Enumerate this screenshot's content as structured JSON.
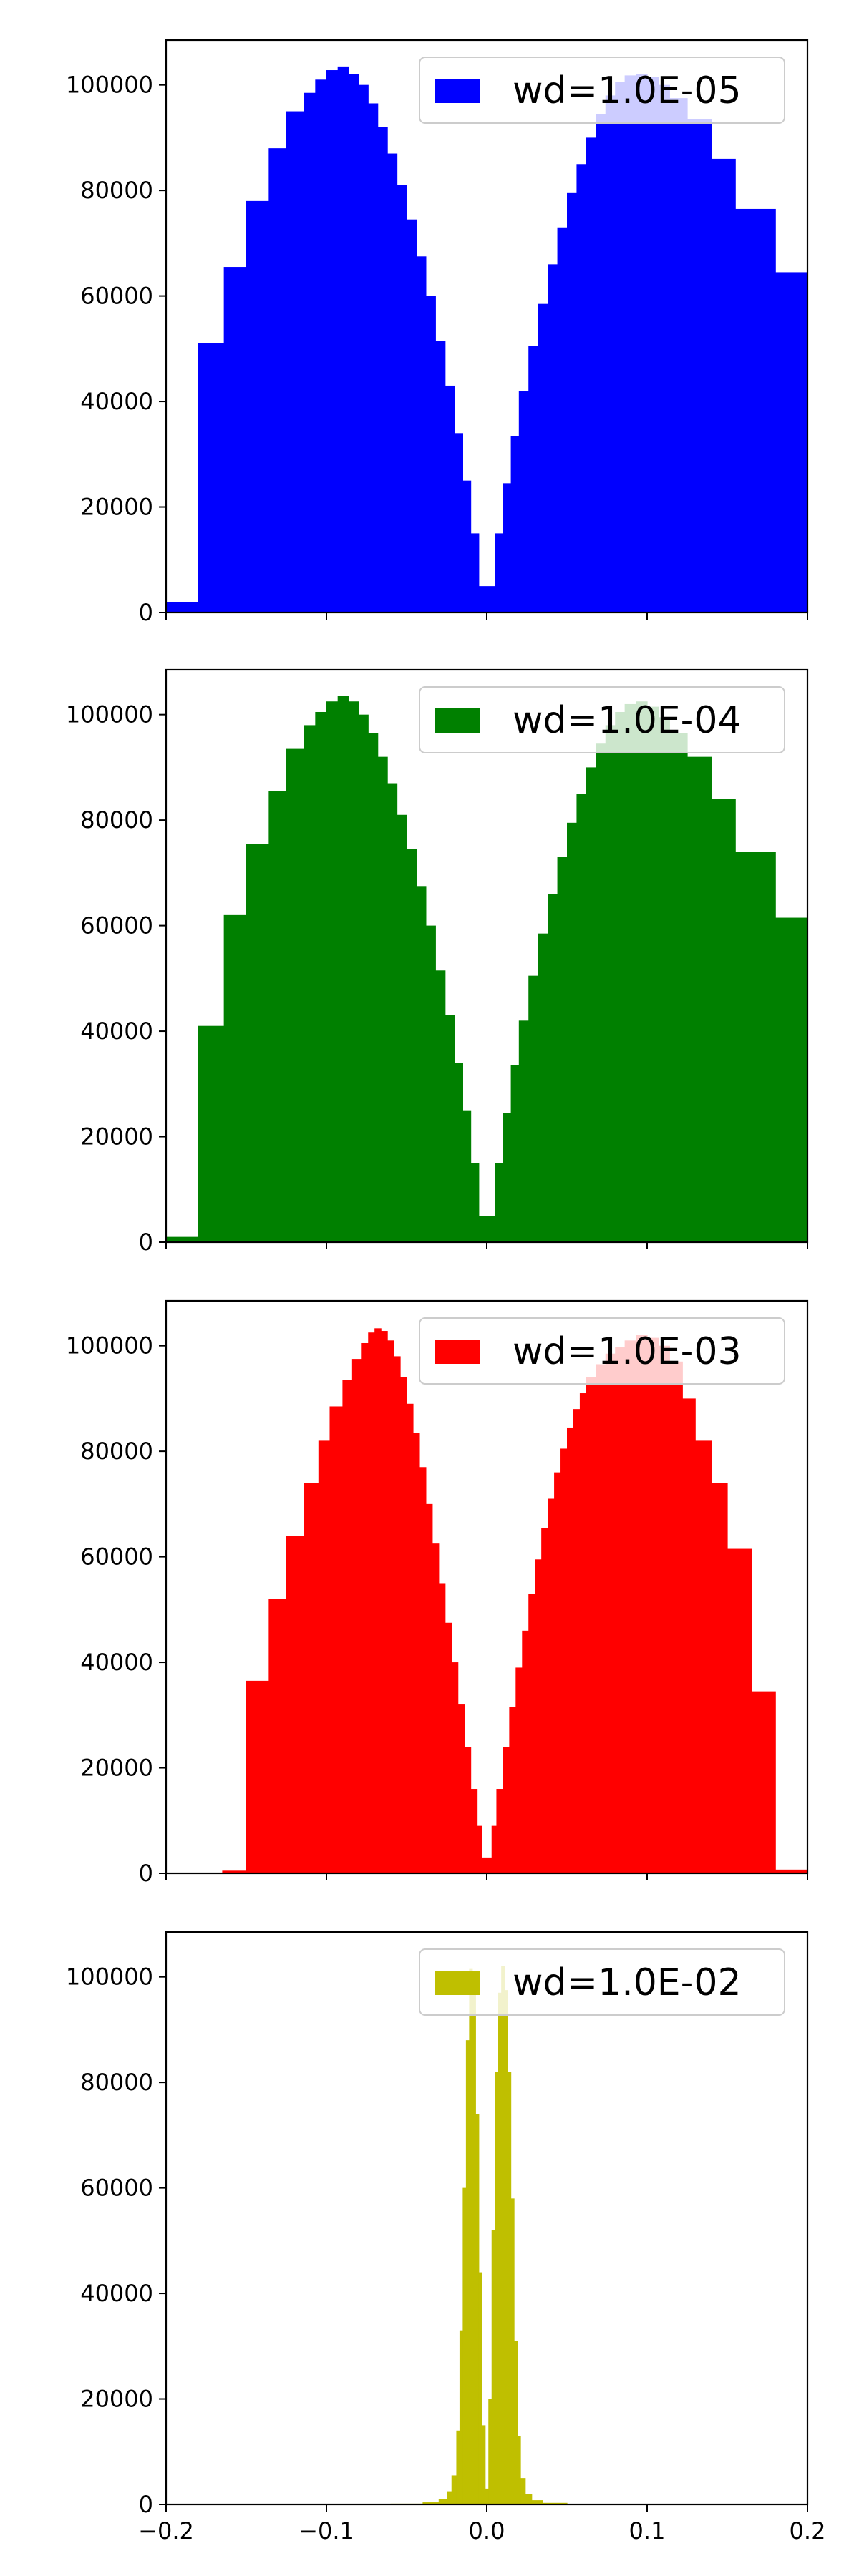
{
  "chart_data": [
    {
      "type": "bar",
      "title": "",
      "xlabel": "",
      "ylabel": "",
      "xlim": [
        -0.2,
        0.2
      ],
      "ylim": [
        0,
        108500
      ],
      "yticks": [
        0,
        20000,
        40000,
        60000,
        80000,
        100000
      ],
      "xticks": [
        -0.2,
        -0.1,
        0.0,
        0.1,
        0.2
      ],
      "xtick_labels_shown": false,
      "legend": {
        "label": "wd=1.0E-05",
        "placement": "top-right"
      },
      "color": "#0000ff",
      "bins": [
        {
          "x0": -0.2,
          "x1": -0.18,
          "v": 2000
        },
        {
          "x0": -0.18,
          "x1": -0.164,
          "v": 51000
        },
        {
          "x0": -0.164,
          "x1": -0.15,
          "v": 65500
        },
        {
          "x0": -0.15,
          "x1": -0.136,
          "v": 78000
        },
        {
          "x0": -0.136,
          "x1": -0.125,
          "v": 88000
        },
        {
          "x0": -0.125,
          "x1": -0.114,
          "v": 95000
        },
        {
          "x0": -0.114,
          "x1": -0.107,
          "v": 98500
        },
        {
          "x0": -0.107,
          "x1": -0.1,
          "v": 101000
        },
        {
          "x0": -0.1,
          "x1": -0.093,
          "v": 102800
        },
        {
          "x0": -0.093,
          "x1": -0.086,
          "v": 103500
        },
        {
          "x0": -0.086,
          "x1": -0.08,
          "v": 102000
        },
        {
          "x0": -0.08,
          "x1": -0.074,
          "v": 100000
        },
        {
          "x0": -0.074,
          "x1": -0.068,
          "v": 96500
        },
        {
          "x0": -0.068,
          "x1": -0.062,
          "v": 92000
        },
        {
          "x0": -0.062,
          "x1": -0.056,
          "v": 87000
        },
        {
          "x0": -0.056,
          "x1": -0.05,
          "v": 81000
        },
        {
          "x0": -0.05,
          "x1": -0.044,
          "v": 74500
        },
        {
          "x0": -0.044,
          "x1": -0.038,
          "v": 67500
        },
        {
          "x0": -0.038,
          "x1": -0.032,
          "v": 60000
        },
        {
          "x0": -0.032,
          "x1": -0.026,
          "v": 51500
        },
        {
          "x0": -0.026,
          "x1": -0.02,
          "v": 43000
        },
        {
          "x0": -0.02,
          "x1": -0.015,
          "v": 34000
        },
        {
          "x0": -0.015,
          "x1": -0.01,
          "v": 25000
        },
        {
          "x0": -0.01,
          "x1": -0.005,
          "v": 15000
        },
        {
          "x0": -0.005,
          "x1": 0.0,
          "v": 5000
        },
        {
          "x0": 0.0,
          "x1": 0.005,
          "v": 5000
        },
        {
          "x0": 0.005,
          "x1": 0.01,
          "v": 15000
        },
        {
          "x0": 0.01,
          "x1": 0.015,
          "v": 24500
        },
        {
          "x0": 0.015,
          "x1": 0.02,
          "v": 33500
        },
        {
          "x0": 0.02,
          "x1": 0.026,
          "v": 42000
        },
        {
          "x0": 0.026,
          "x1": 0.032,
          "v": 50500
        },
        {
          "x0": 0.032,
          "x1": 0.038,
          "v": 58500
        },
        {
          "x0": 0.038,
          "x1": 0.044,
          "v": 66000
        },
        {
          "x0": 0.044,
          "x1": 0.05,
          "v": 73000
        },
        {
          "x0": 0.05,
          "x1": 0.056,
          "v": 79500
        },
        {
          "x0": 0.056,
          "x1": 0.062,
          "v": 85000
        },
        {
          "x0": 0.062,
          "x1": 0.068,
          "v": 90000
        },
        {
          "x0": 0.068,
          "x1": 0.074,
          "v": 94500
        },
        {
          "x0": 0.074,
          "x1": 0.08,
          "v": 98000
        },
        {
          "x0": 0.08,
          "x1": 0.086,
          "v": 100500
        },
        {
          "x0": 0.086,
          "x1": 0.093,
          "v": 101800
        },
        {
          "x0": 0.093,
          "x1": 0.1,
          "v": 102000
        },
        {
          "x0": 0.1,
          "x1": 0.107,
          "v": 101500
        },
        {
          "x0": 0.107,
          "x1": 0.114,
          "v": 100000
        },
        {
          "x0": 0.114,
          "x1": 0.125,
          "v": 97500
        },
        {
          "x0": 0.125,
          "x1": 0.14,
          "v": 93500
        },
        {
          "x0": 0.14,
          "x1": 0.155,
          "v": 86000
        },
        {
          "x0": 0.155,
          "x1": 0.18,
          "v": 76500
        },
        {
          "x0": 0.18,
          "x1": 0.2,
          "v": 64500
        }
      ]
    },
    {
      "type": "bar",
      "title": "",
      "xlabel": "",
      "ylabel": "",
      "xlim": [
        -0.2,
        0.2
      ],
      "ylim": [
        0,
        108500
      ],
      "yticks": [
        0,
        20000,
        40000,
        60000,
        80000,
        100000
      ],
      "xticks": [
        -0.2,
        -0.1,
        0.0,
        0.1,
        0.2
      ],
      "xtick_labels_shown": false,
      "legend": {
        "label": "wd=1.0E-04",
        "placement": "top-right"
      },
      "color": "#008000",
      "bins": [
        {
          "x0": -0.2,
          "x1": -0.18,
          "v": 1000
        },
        {
          "x0": -0.18,
          "x1": -0.164,
          "v": 41000
        },
        {
          "x0": -0.164,
          "x1": -0.15,
          "v": 62000
        },
        {
          "x0": -0.15,
          "x1": -0.136,
          "v": 75500
        },
        {
          "x0": -0.136,
          "x1": -0.125,
          "v": 85500
        },
        {
          "x0": -0.125,
          "x1": -0.114,
          "v": 93500
        },
        {
          "x0": -0.114,
          "x1": -0.107,
          "v": 98000
        },
        {
          "x0": -0.107,
          "x1": -0.1,
          "v": 100500
        },
        {
          "x0": -0.1,
          "x1": -0.093,
          "v": 102500
        },
        {
          "x0": -0.093,
          "x1": -0.086,
          "v": 103500
        },
        {
          "x0": -0.086,
          "x1": -0.08,
          "v": 102500
        },
        {
          "x0": -0.08,
          "x1": -0.074,
          "v": 100000
        },
        {
          "x0": -0.074,
          "x1": -0.068,
          "v": 96500
        },
        {
          "x0": -0.068,
          "x1": -0.062,
          "v": 92000
        },
        {
          "x0": -0.062,
          "x1": -0.056,
          "v": 87000
        },
        {
          "x0": -0.056,
          "x1": -0.05,
          "v": 81000
        },
        {
          "x0": -0.05,
          "x1": -0.044,
          "v": 74500
        },
        {
          "x0": -0.044,
          "x1": -0.038,
          "v": 67500
        },
        {
          "x0": -0.038,
          "x1": -0.032,
          "v": 60000
        },
        {
          "x0": -0.032,
          "x1": -0.026,
          "v": 51500
        },
        {
          "x0": -0.026,
          "x1": -0.02,
          "v": 43000
        },
        {
          "x0": -0.02,
          "x1": -0.015,
          "v": 34000
        },
        {
          "x0": -0.015,
          "x1": -0.01,
          "v": 25000
        },
        {
          "x0": -0.01,
          "x1": -0.005,
          "v": 15000
        },
        {
          "x0": -0.005,
          "x1": 0.0,
          "v": 5000
        },
        {
          "x0": 0.0,
          "x1": 0.005,
          "v": 5000
        },
        {
          "x0": 0.005,
          "x1": 0.01,
          "v": 15000
        },
        {
          "x0": 0.01,
          "x1": 0.015,
          "v": 24500
        },
        {
          "x0": 0.015,
          "x1": 0.02,
          "v": 33500
        },
        {
          "x0": 0.02,
          "x1": 0.026,
          "v": 42000
        },
        {
          "x0": 0.026,
          "x1": 0.032,
          "v": 50500
        },
        {
          "x0": 0.032,
          "x1": 0.038,
          "v": 58500
        },
        {
          "x0": 0.038,
          "x1": 0.044,
          "v": 66000
        },
        {
          "x0": 0.044,
          "x1": 0.05,
          "v": 73000
        },
        {
          "x0": 0.05,
          "x1": 0.056,
          "v": 79500
        },
        {
          "x0": 0.056,
          "x1": 0.062,
          "v": 85000
        },
        {
          "x0": 0.062,
          "x1": 0.068,
          "v": 90000
        },
        {
          "x0": 0.068,
          "x1": 0.074,
          "v": 94500
        },
        {
          "x0": 0.074,
          "x1": 0.08,
          "v": 98000
        },
        {
          "x0": 0.08,
          "x1": 0.086,
          "v": 100500
        },
        {
          "x0": 0.086,
          "x1": 0.093,
          "v": 102000
        },
        {
          "x0": 0.093,
          "x1": 0.1,
          "v": 102500
        },
        {
          "x0": 0.1,
          "x1": 0.107,
          "v": 101500
        },
        {
          "x0": 0.107,
          "x1": 0.114,
          "v": 99500
        },
        {
          "x0": 0.114,
          "x1": 0.125,
          "v": 96500
        },
        {
          "x0": 0.125,
          "x1": 0.14,
          "v": 92000
        },
        {
          "x0": 0.14,
          "x1": 0.155,
          "v": 84000
        },
        {
          "x0": 0.155,
          "x1": 0.18,
          "v": 74000
        },
        {
          "x0": 0.18,
          "x1": 0.2,
          "v": 61500
        }
      ]
    },
    {
      "type": "bar",
      "title": "",
      "xlabel": "",
      "ylabel": "",
      "xlim": [
        -0.2,
        0.2
      ],
      "ylim": [
        0,
        108500
      ],
      "yticks": [
        0,
        20000,
        40000,
        60000,
        80000,
        100000
      ],
      "xticks": [
        -0.2,
        -0.1,
        0.0,
        0.1,
        0.2
      ],
      "xtick_labels_shown": false,
      "legend": {
        "label": "wd=1.0E-03",
        "placement": "top-right"
      },
      "color": "#ff0000",
      "bins": [
        {
          "x0": -0.165,
          "x1": -0.15,
          "v": 500
        },
        {
          "x0": -0.15,
          "x1": -0.136,
          "v": 36500
        },
        {
          "x0": -0.136,
          "x1": -0.125,
          "v": 52000
        },
        {
          "x0": -0.125,
          "x1": -0.114,
          "v": 64000
        },
        {
          "x0": -0.114,
          "x1": -0.105,
          "v": 74000
        },
        {
          "x0": -0.105,
          "x1": -0.098,
          "v": 82000
        },
        {
          "x0": -0.098,
          "x1": -0.09,
          "v": 88500
        },
        {
          "x0": -0.09,
          "x1": -0.084,
          "v": 93500
        },
        {
          "x0": -0.084,
          "x1": -0.078,
          "v": 97500
        },
        {
          "x0": -0.078,
          "x1": -0.074,
          "v": 100500
        },
        {
          "x0": -0.074,
          "x1": -0.07,
          "v": 102500
        },
        {
          "x0": -0.07,
          "x1": -0.066,
          "v": 103300
        },
        {
          "x0": -0.066,
          "x1": -0.062,
          "v": 102800
        },
        {
          "x0": -0.062,
          "x1": -0.058,
          "v": 101000
        },
        {
          "x0": -0.058,
          "x1": -0.054,
          "v": 98000
        },
        {
          "x0": -0.054,
          "x1": -0.05,
          "v": 94000
        },
        {
          "x0": -0.05,
          "x1": -0.046,
          "v": 89000
        },
        {
          "x0": -0.046,
          "x1": -0.042,
          "v": 83500
        },
        {
          "x0": -0.042,
          "x1": -0.038,
          "v": 77000
        },
        {
          "x0": -0.038,
          "x1": -0.034,
          "v": 70000
        },
        {
          "x0": -0.034,
          "x1": -0.03,
          "v": 62500
        },
        {
          "x0": -0.03,
          "x1": -0.026,
          "v": 55000
        },
        {
          "x0": -0.026,
          "x1": -0.022,
          "v": 47500
        },
        {
          "x0": -0.022,
          "x1": -0.018,
          "v": 40000
        },
        {
          "x0": -0.018,
          "x1": -0.014,
          "v": 32000
        },
        {
          "x0": -0.014,
          "x1": -0.01,
          "v": 24000
        },
        {
          "x0": -0.01,
          "x1": -0.006,
          "v": 16000
        },
        {
          "x0": -0.006,
          "x1": -0.003,
          "v": 9000
        },
        {
          "x0": -0.003,
          "x1": 0.0,
          "v": 3000
        },
        {
          "x0": 0.0,
          "x1": 0.003,
          "v": 3000
        },
        {
          "x0": 0.003,
          "x1": 0.006,
          "v": 9000
        },
        {
          "x0": 0.006,
          "x1": 0.01,
          "v": 16000
        },
        {
          "x0": 0.01,
          "x1": 0.014,
          "v": 24000
        },
        {
          "x0": 0.014,
          "x1": 0.018,
          "v": 31500
        },
        {
          "x0": 0.018,
          "x1": 0.022,
          "v": 39000
        },
        {
          "x0": 0.022,
          "x1": 0.026,
          "v": 46000
        },
        {
          "x0": 0.026,
          "x1": 0.03,
          "v": 53000
        },
        {
          "x0": 0.03,
          "x1": 0.034,
          "v": 59500
        },
        {
          "x0": 0.034,
          "x1": 0.038,
          "v": 65500
        },
        {
          "x0": 0.038,
          "x1": 0.042,
          "v": 71000
        },
        {
          "x0": 0.042,
          "x1": 0.046,
          "v": 76000
        },
        {
          "x0": 0.046,
          "x1": 0.05,
          "v": 80500
        },
        {
          "x0": 0.05,
          "x1": 0.054,
          "v": 84500
        },
        {
          "x0": 0.054,
          "x1": 0.058,
          "v": 88000
        },
        {
          "x0": 0.058,
          "x1": 0.062,
          "v": 91000
        },
        {
          "x0": 0.062,
          "x1": 0.068,
          "v": 94000
        },
        {
          "x0": 0.068,
          "x1": 0.074,
          "v": 96500
        },
        {
          "x0": 0.074,
          "x1": 0.08,
          "v": 98500
        },
        {
          "x0": 0.08,
          "x1": 0.086,
          "v": 99800
        },
        {
          "x0": 0.086,
          "x1": 0.093,
          "v": 101000
        },
        {
          "x0": 0.093,
          "x1": 0.1,
          "v": 102000
        },
        {
          "x0": 0.1,
          "x1": 0.107,
          "v": 101500
        },
        {
          "x0": 0.107,
          "x1": 0.114,
          "v": 100000
        },
        {
          "x0": 0.114,
          "x1": 0.122,
          "v": 97000
        },
        {
          "x0": 0.122,
          "x1": 0.13,
          "v": 90000
        },
        {
          "x0": 0.13,
          "x1": 0.14,
          "v": 82000
        },
        {
          "x0": 0.14,
          "x1": 0.15,
          "v": 74000
        },
        {
          "x0": 0.15,
          "x1": 0.165,
          "v": 61500
        },
        {
          "x0": 0.165,
          "x1": 0.18,
          "v": 34500
        },
        {
          "x0": 0.18,
          "x1": 0.2,
          "v": 700
        }
      ]
    },
    {
      "type": "bar",
      "title": "",
      "xlabel": "",
      "ylabel": "",
      "xlim": [
        -0.2,
        0.2
      ],
      "ylim": [
        0,
        108500
      ],
      "yticks": [
        0,
        20000,
        40000,
        60000,
        80000,
        100000
      ],
      "xticks": [
        -0.2,
        -0.1,
        0.0,
        0.1,
        0.2
      ],
      "xtick_labels": [
        "−0.2",
        "−0.1",
        "0.0",
        "0.1",
        "0.2"
      ],
      "xtick_labels_shown": true,
      "legend": {
        "label": "wd=1.0E-02",
        "placement": "top-right"
      },
      "color": "#bfbf00",
      "bins": [
        {
          "x0": -0.06,
          "x1": -0.04,
          "v": 150
        },
        {
          "x0": -0.04,
          "x1": -0.03,
          "v": 400
        },
        {
          "x0": -0.03,
          "x1": -0.025,
          "v": 1000
        },
        {
          "x0": -0.025,
          "x1": -0.022,
          "v": 2500
        },
        {
          "x0": -0.022,
          "x1": -0.019,
          "v": 5500
        },
        {
          "x0": -0.019,
          "x1": -0.017,
          "v": 14000
        },
        {
          "x0": -0.017,
          "x1": -0.015,
          "v": 33000
        },
        {
          "x0": -0.015,
          "x1": -0.013,
          "v": 60000
        },
        {
          "x0": -0.013,
          "x1": -0.011,
          "v": 88000
        },
        {
          "x0": -0.011,
          "x1": -0.009,
          "v": 101500
        },
        {
          "x0": -0.009,
          "x1": -0.007,
          "v": 97000
        },
        {
          "x0": -0.007,
          "x1": -0.005,
          "v": 74000
        },
        {
          "x0": -0.005,
          "x1": -0.003,
          "v": 44000
        },
        {
          "x0": -0.003,
          "x1": -0.001,
          "v": 15000
        },
        {
          "x0": -0.001,
          "x1": 0.001,
          "v": 3000
        },
        {
          "x0": 0.001,
          "x1": 0.003,
          "v": 20000
        },
        {
          "x0": 0.003,
          "x1": 0.005,
          "v": 52000
        },
        {
          "x0": 0.005,
          "x1": 0.007,
          "v": 82000
        },
        {
          "x0": 0.007,
          "x1": 0.009,
          "v": 97000
        },
        {
          "x0": 0.009,
          "x1": 0.011,
          "v": 102000
        },
        {
          "x0": 0.011,
          "x1": 0.013,
          "v": 97500
        },
        {
          "x0": 0.013,
          "x1": 0.015,
          "v": 82000
        },
        {
          "x0": 0.015,
          "x1": 0.017,
          "v": 58000
        },
        {
          "x0": 0.017,
          "x1": 0.019,
          "v": 31000
        },
        {
          "x0": 0.019,
          "x1": 0.021,
          "v": 13000
        },
        {
          "x0": 0.021,
          "x1": 0.024,
          "v": 5000
        },
        {
          "x0": 0.024,
          "x1": 0.028,
          "v": 2000
        },
        {
          "x0": 0.028,
          "x1": 0.035,
          "v": 800
        },
        {
          "x0": 0.035,
          "x1": 0.05,
          "v": 300
        },
        {
          "x0": 0.05,
          "x1": 0.07,
          "v": 100
        }
      ]
    }
  ]
}
